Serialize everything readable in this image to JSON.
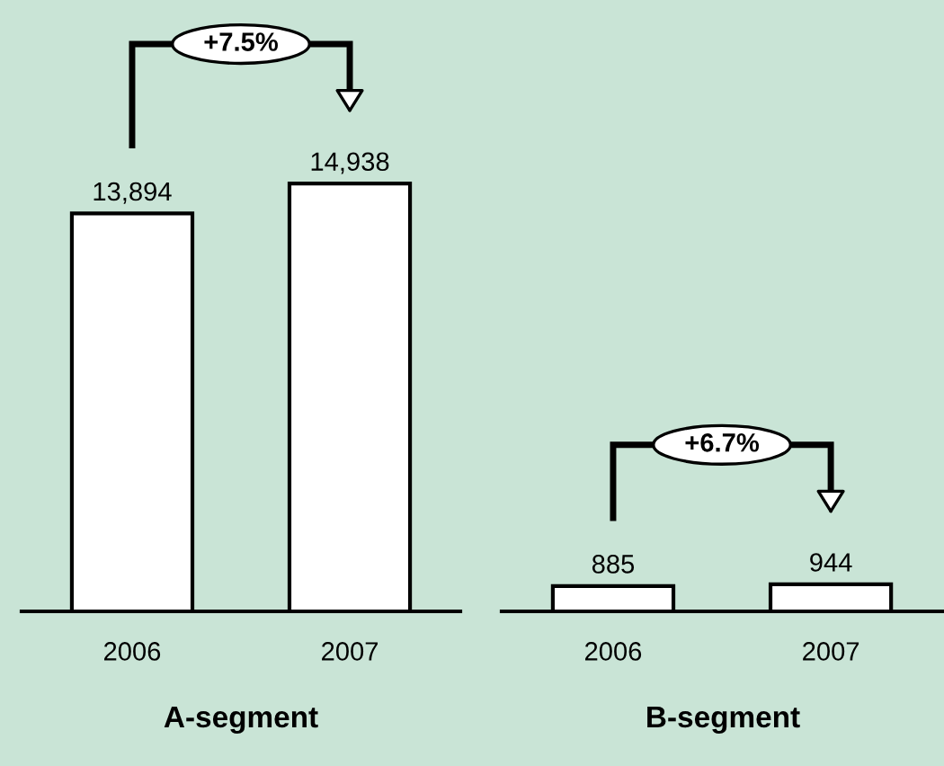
{
  "chart_data": [
    {
      "type": "bar",
      "xlabel": "A-segment",
      "categories": [
        "2006",
        "2007"
      ],
      "values": [
        13894,
        14938
      ],
      "value_labels": [
        "13,894",
        "14,938"
      ],
      "color": "#ffffff",
      "annotations": [
        "+7.5%"
      ]
    },
    {
      "type": "bar",
      "xlabel": "B-segment",
      "categories": [
        "2006",
        "2007"
      ],
      "values": [
        885,
        944
      ],
      "value_labels": [
        "885",
        "944"
      ],
      "color": "#ffffff",
      "annotations": [
        "+6.7%"
      ]
    }
  ]
}
